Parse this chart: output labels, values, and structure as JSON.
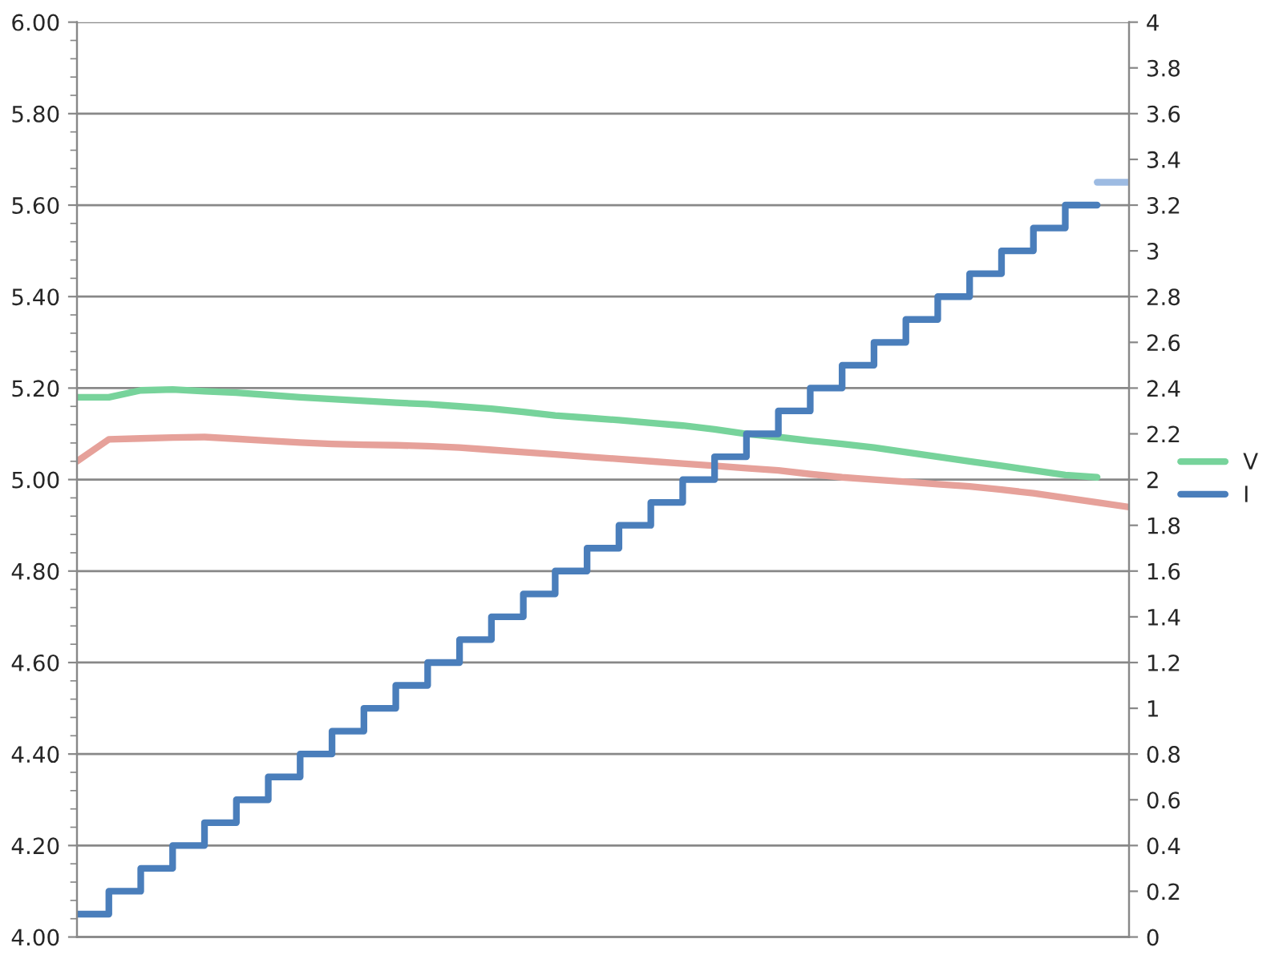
{
  "chart_data": {
    "type": "line",
    "categories": [
      null,
      null,
      null,
      null,
      null,
      null,
      null,
      null,
      null,
      null,
      null,
      null,
      null,
      null,
      null,
      null,
      null,
      null,
      null,
      null,
      null,
      null,
      null,
      null,
      null,
      null,
      null,
      null,
      null,
      null,
      null,
      null,
      null,
      null
    ],
    "tick_labels": "y",
    "ylim": [
      4.0,
      6.0
    ],
    "yticks": [
      {
        "value": 4.0,
        "label": "4.00"
      },
      {
        "value": 4.2,
        "label": "4.20"
      },
      {
        "value": 4.4,
        "label": "4.40"
      },
      {
        "value": 4.6,
        "label": "4.60"
      },
      {
        "value": 4.8,
        "label": "4.80"
      },
      {
        "value": 5.0,
        "label": "5.00"
      },
      {
        "value": 5.2,
        "label": "5.20"
      },
      {
        "value": 5.4,
        "label": "5.40"
      },
      {
        "value": 5.6,
        "label": "5.60"
      },
      {
        "value": 5.8,
        "label": "5.80"
      },
      {
        "value": 6.0,
        "label": "6.00"
      }
    ],
    "y2lim": [
      0,
      4
    ],
    "y2ticks": [
      0,
      0.2,
      0.4,
      0.6,
      0.8,
      1,
      1.2,
      1.4,
      1.6,
      1.8,
      2,
      2.2,
      2.4,
      2.6,
      2.8,
      3,
      3.2,
      3.4,
      3.6,
      3.8,
      4
    ],
    "grid": "y",
    "legend": "right",
    "series": [
      {
        "name": "V",
        "color": "#77d39b",
        "values": [
          5.18,
          5.18,
          5.195,
          5.197,
          5.193,
          5.19,
          5.185,
          5.18,
          5.176,
          5.172,
          5.168,
          5.165,
          5.16,
          5.155,
          5.148,
          5.14,
          5.135,
          5.13,
          5.124,
          5.118,
          5.11,
          5.1,
          5.093,
          5.085,
          5.078,
          5.07,
          5.06,
          5.05,
          5.04,
          5.03,
          5.02,
          5.01,
          5.005,
          null
        ]
      },
      {
        "color": "#e6a19a",
        "values": [
          5.04,
          5.088,
          5.09,
          5.092,
          5.093,
          5.089,
          5.085,
          5.081,
          5.078,
          5.076,
          5.075,
          5.073,
          5.07,
          5.065,
          5.06,
          5.055,
          5.05,
          5.045,
          5.04,
          5.035,
          5.03,
          5.025,
          5.02,
          5.012,
          5.005,
          5.0,
          4.995,
          4.99,
          4.985,
          4.978,
          4.97,
          4.96,
          4.95,
          4.94
        ]
      },
      {
        "name": "I",
        "type": "step",
        "axis": "y2",
        "color": "#4a7ebb",
        "values": [
          0.1,
          0.2,
          0.3,
          0.4,
          0.5,
          0.6,
          0.7,
          0.8,
          0.9,
          1.0,
          1.1,
          1.2,
          1.3,
          1.4,
          1.5,
          1.6,
          1.7,
          1.8,
          1.9,
          2.0,
          2.1,
          2.2,
          2.3,
          2.4,
          2.5,
          2.6,
          2.7,
          2.8,
          2.9,
          3.0,
          3.1,
          3.2,
          3.2,
          null
        ]
      },
      {
        "type": "step",
        "axis": "y2",
        "color": "#9dbbe2",
        "values": [
          null,
          null,
          null,
          null,
          null,
          null,
          null,
          null,
          null,
          null,
          null,
          null,
          null,
          null,
          null,
          null,
          null,
          null,
          null,
          null,
          null,
          null,
          null,
          null,
          null,
          null,
          null,
          null,
          null,
          null,
          null,
          null,
          3.3,
          3.3
        ]
      }
    ]
  }
}
